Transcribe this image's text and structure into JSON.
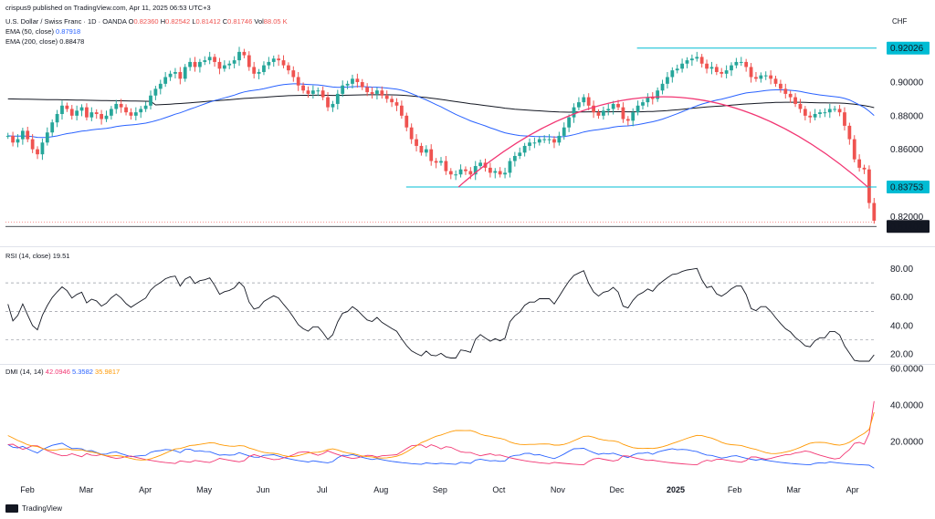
{
  "header": {
    "published": "crispus9 published on TradingView.com, Apr 11, 2025 06:53 UTC+3",
    "symbol": "U.S. Dollar / Swiss Franc · 1D · OANDA",
    "ohlc": {
      "o_label": "O",
      "o": "0.82360",
      "h_label": "H",
      "h": "0.82542",
      "l_label": "L",
      "l": "0.81412",
      "c_label": "C",
      "c": "0.81746",
      "vol_label": "Vol",
      "vol": "88.05 K"
    },
    "ema50_label": "EMA (50, close)",
    "ema50_value": "0.87918",
    "ema200_label": "EMA (200, close)",
    "ema200_value": "0.88478",
    "currency": "CHF"
  },
  "footer": {
    "brand": "TradingView"
  },
  "colors": {
    "up": "#26a69a",
    "down": "#ef5350",
    "ema50": "#2962ff",
    "ema200": "#131722",
    "arc": "#f23673",
    "support": "#00bcd4",
    "rsi": "#131722",
    "di_plus": "#2962ff",
    "di_minus": "#f23673",
    "adx": "#ff9800"
  },
  "chart_data": [
    {
      "type": "candlestick",
      "title": "U.S. Dollar / Swiss Franc · 1D · OANDA",
      "ylabel": "CHF",
      "y_ticks": [
        "0.90000",
        "0.88000",
        "0.86000",
        "0.82000"
      ],
      "ylim": [
        0.812,
        0.925
      ],
      "x_ticks": [
        "Feb",
        "Mar",
        "Apr",
        "May",
        "Jun",
        "Jul",
        "Aug",
        "Sep",
        "Oct",
        "Nov",
        "Dec",
        "2025",
        "Feb",
        "Mar",
        "Apr"
      ],
      "price_labels": [
        {
          "value": 0.92026,
          "text": "0.92026",
          "color": "#00bcd4"
        },
        {
          "value": 0.83753,
          "text": "0.83753",
          "color": "#00bcd4"
        },
        {
          "value": 0.81403,
          "text": "0.81403",
          "color": "#131722"
        }
      ],
      "horizontal_lines": [
        {
          "value": 0.92026,
          "from": "Dec",
          "to": "2025-04"
        },
        {
          "value": 0.83753,
          "from": "Aug",
          "to": "2025-04"
        }
      ],
      "close_series": [
        0.868,
        0.864,
        0.866,
        0.871,
        0.866,
        0.86,
        0.857,
        0.864,
        0.87,
        0.876,
        0.881,
        0.886,
        0.884,
        0.88,
        0.883,
        0.885,
        0.879,
        0.882,
        0.881,
        0.878,
        0.88,
        0.884,
        0.887,
        0.885,
        0.882,
        0.88,
        0.882,
        0.884,
        0.886,
        0.892,
        0.896,
        0.899,
        0.903,
        0.905,
        0.906,
        0.902,
        0.909,
        0.912,
        0.909,
        0.912,
        0.913,
        0.915,
        0.912,
        0.908,
        0.91,
        0.911,
        0.913,
        0.918,
        0.916,
        0.909,
        0.905,
        0.906,
        0.91,
        0.912,
        0.914,
        0.913,
        0.91,
        0.907,
        0.903,
        0.898,
        0.895,
        0.893,
        0.895,
        0.895,
        0.891,
        0.885,
        0.887,
        0.893,
        0.898,
        0.899,
        0.902,
        0.9,
        0.897,
        0.894,
        0.893,
        0.895,
        0.892,
        0.89,
        0.888,
        0.886,
        0.88,
        0.873,
        0.866,
        0.862,
        0.858,
        0.86,
        0.853,
        0.852,
        0.853,
        0.847,
        0.845,
        0.845,
        0.848,
        0.847,
        0.845,
        0.85,
        0.852,
        0.849,
        0.846,
        0.847,
        0.845,
        0.846,
        0.853,
        0.856,
        0.858,
        0.862,
        0.864,
        0.864,
        0.866,
        0.866,
        0.866,
        0.864,
        0.868,
        0.873,
        0.879,
        0.885,
        0.888,
        0.891,
        0.886,
        0.882,
        0.88,
        0.883,
        0.884,
        0.887,
        0.885,
        0.878,
        0.877,
        0.882,
        0.886,
        0.888,
        0.891,
        0.89,
        0.895,
        0.899,
        0.903,
        0.907,
        0.908,
        0.911,
        0.913,
        0.914,
        0.915,
        0.911,
        0.908,
        0.909,
        0.906,
        0.905,
        0.907,
        0.91,
        0.912,
        0.912,
        0.909,
        0.903,
        0.902,
        0.904,
        0.904,
        0.902,
        0.899,
        0.896,
        0.893,
        0.891,
        0.887,
        0.884,
        0.88,
        0.879,
        0.881,
        0.882,
        0.882,
        0.884,
        0.884,
        0.882,
        0.874,
        0.866,
        0.854,
        0.849,
        0.848,
        0.828,
        0.81746
      ],
      "ema50_series_endpoints": [
        0.869,
        0.87918
      ],
      "ema200_series_endpoints": [
        0.89,
        0.88478
      ],
      "annotations": [
        "arc from Sep low to Dec high to Apr"
      ]
    },
    {
      "type": "line",
      "title": "RSI (14, close)",
      "series": [
        {
          "name": "RSI",
          "last": 19.51
        }
      ],
      "y_ticks": [
        80,
        60,
        40,
        20
      ],
      "ylim": [
        15,
        88
      ],
      "levels": [
        70,
        50,
        30
      ]
    },
    {
      "type": "line",
      "title": "DMI (14, 14)",
      "series": [
        {
          "name": "+DI",
          "last": 5.3582,
          "color": "#2962ff"
        },
        {
          "name": "-DI",
          "last": 42.0946,
          "color": "#f23673"
        },
        {
          "name": "ADX",
          "last": 35.9817,
          "color": "#ff9800"
        }
      ],
      "y_ticks": [
        "60.0000",
        "40.0000",
        "20.0000"
      ],
      "ylim": [
        2,
        61
      ]
    }
  ],
  "legends": {
    "rsi_label": "RSI (14, close)",
    "rsi_value": "19.51",
    "dmi_label": "DMI (14, 14)",
    "dmi_minus": "42.0946",
    "dmi_plus": "5.3582",
    "dmi_adx": "35.9817"
  },
  "axis_labels": {
    "price": [
      "0.90000",
      "0.88000",
      "0.86000",
      "0.82000"
    ],
    "rsi": [
      "80.00",
      "60.00",
      "40.00",
      "20.00"
    ],
    "dmi": [
      "60.0000",
      "40.0000",
      "20.0000"
    ],
    "months": [
      "Feb",
      "Mar",
      "Apr",
      "May",
      "Jun",
      "Jul",
      "Aug",
      "Sep",
      "Oct",
      "Nov",
      "Dec",
      "2025",
      "Feb",
      "Mar",
      "Apr"
    ],
    "price_badges": [
      "0.92026",
      "0.83753",
      "0.81403"
    ]
  }
}
